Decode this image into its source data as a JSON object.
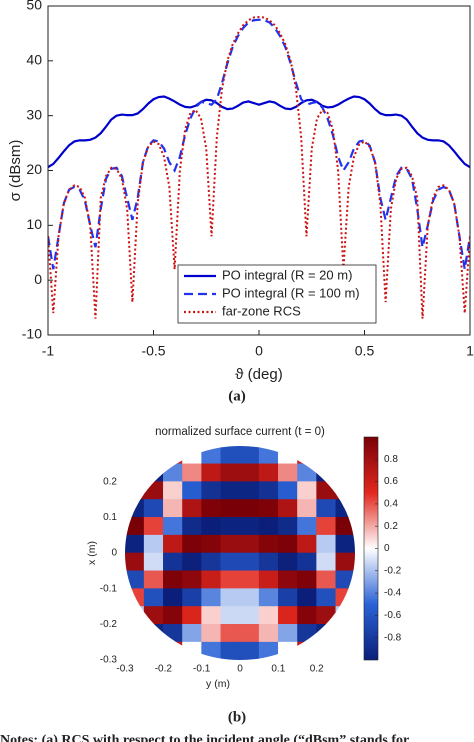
{
  "chart_data": [
    {
      "type": "line",
      "xlabel": "ϑ (deg)",
      "ylabel": "σ (dBsm)",
      "x": [
        -1,
        -0.975,
        -0.95,
        -0.925,
        -0.9,
        -0.875,
        -0.85,
        -0.825,
        -0.8,
        -0.775,
        -0.75,
        -0.725,
        -0.7,
        -0.675,
        -0.65,
        -0.625,
        -0.6,
        -0.575,
        -0.55,
        -0.525,
        -0.5,
        -0.475,
        -0.45,
        -0.425,
        -0.4,
        -0.375,
        -0.35,
        -0.325,
        -0.3,
        -0.275,
        -0.25,
        -0.225,
        -0.2,
        -0.175,
        -0.15,
        -0.125,
        -0.1,
        -0.075,
        -0.05,
        -0.025,
        0,
        0.025,
        0.05,
        0.075,
        0.1,
        0.125,
        0.15,
        0.175,
        0.2,
        0.225,
        0.25,
        0.275,
        0.3,
        0.325,
        0.35,
        0.375,
        0.4,
        0.425,
        0.45,
        0.475,
        0.5,
        0.525,
        0.55,
        0.575,
        0.6,
        0.625,
        0.65,
        0.675,
        0.7,
        0.725,
        0.75,
        0.775,
        0.8,
        0.825,
        0.85,
        0.875,
        0.9,
        0.925,
        0.95,
        0.975,
        1
      ],
      "series": [
        {
          "name": "PO integral (R = 20 m)",
          "color": "#0000cc",
          "style": "solid",
          "values": [
            20.6,
            21.2,
            22.3,
            23.5,
            24.6,
            25.3,
            25.5,
            25.5,
            25.6,
            26,
            26.8,
            28,
            29.3,
            30,
            30.2,
            30.1,
            30.1,
            30.4,
            31.2,
            32.2,
            33,
            33.4,
            33.5,
            33.1,
            32.6,
            32,
            31.6,
            31.5,
            31.8,
            32.5,
            32.9,
            32.8,
            32.3,
            31.6,
            31.2,
            31.3,
            31.8,
            32.4,
            32.6,
            32.3,
            32,
            32.3,
            32.6,
            32.4,
            31.8,
            31.3,
            31.2,
            31.6,
            32.3,
            32.8,
            32.9,
            32.5,
            31.8,
            31.5,
            31.6,
            32,
            32.6,
            33.1,
            33.5,
            33.4,
            33,
            32.2,
            31.2,
            30.4,
            30.1,
            30.1,
            30.2,
            30,
            29.3,
            28,
            26.8,
            26,
            25.6,
            25.5,
            25.5,
            25.3,
            24.6,
            23.5,
            22.3,
            21.2,
            20.6
          ]
        },
        {
          "name": "PO integral (R = 100 m)",
          "color": "#2233ee",
          "style": "dashed",
          "values": [
            8,
            2,
            8,
            14,
            16.5,
            17,
            16.5,
            14.5,
            10,
            6,
            13,
            18.5,
            20.3,
            20.5,
            19,
            15,
            11,
            15,
            21.5,
            24.5,
            25.5,
            25.3,
            24,
            21.5,
            20,
            22.5,
            26.5,
            29.5,
            31.5,
            32.5,
            32.3,
            32,
            33,
            36,
            39.5,
            42.5,
            44.5,
            46,
            47,
            47.4,
            47.5,
            47.4,
            47,
            46,
            44.5,
            42.5,
            39.5,
            36,
            33,
            32,
            32.3,
            32.5,
            31.5,
            29.5,
            26.5,
            22.5,
            20,
            21.5,
            24,
            25.3,
            25.5,
            24.5,
            21.5,
            15,
            11,
            15,
            19,
            20.5,
            20.3,
            18.5,
            13,
            6,
            10,
            14.5,
            16.5,
            17,
            16.5,
            14,
            8,
            2,
            8
          ]
        },
        {
          "name": "far-zone RCS",
          "color": "#cc1111",
          "style": "dotted",
          "values": [
            8,
            -6,
            8,
            14,
            16.5,
            17.3,
            17,
            15,
            10,
            -7,
            15,
            19,
            20.5,
            20.3,
            18.5,
            13,
            -4,
            14,
            21.5,
            24.3,
            25.3,
            24.8,
            22.5,
            17,
            2,
            20,
            27.5,
            30.5,
            31,
            29.5,
            24,
            8,
            26,
            35,
            40,
            43,
            45,
            46.5,
            47.4,
            47.9,
            48,
            47.9,
            47.4,
            46.5,
            45,
            43,
            40,
            35,
            26,
            8,
            24,
            29.5,
            31,
            30.5,
            27.5,
            20,
            2,
            17,
            22.5,
            24.8,
            25.3,
            24.3,
            21.5,
            14,
            -4,
            13,
            18.5,
            20.3,
            20.5,
            19,
            15,
            -7,
            10,
            15,
            17,
            17.3,
            16.5,
            14,
            8,
            -6,
            8
          ]
        }
      ],
      "xlim": [
        -1,
        1
      ],
      "ylim": [
        -10,
        50
      ],
      "xticks": [
        -1,
        -0.5,
        0,
        0.5,
        1
      ],
      "yticks": [
        -10,
        0,
        10,
        20,
        30,
        40,
        50
      ],
      "grid": false,
      "legend": "lower center"
    },
    {
      "type": "heatmap",
      "title": "normalized surface current (t = 0)",
      "xlabel": "y (m)",
      "ylabel": "x (m)",
      "columns": [
        -0.275,
        -0.225,
        -0.175,
        -0.125,
        -0.075,
        -0.025,
        0.025,
        0.075,
        0.125,
        0.175,
        0.225,
        0.275
      ],
      "rows": [
        0.275,
        0.225,
        0.175,
        0.125,
        0.075,
        0.025,
        -0.025,
        -0.075,
        -0.125,
        -0.175,
        -0.225,
        -0.275
      ],
      "values": [
        [
          null,
          null,
          0.63,
          0,
          -0.44,
          -0.64,
          -0.64,
          -0.44,
          0,
          0.63,
          null,
          null
        ],
        [
          null,
          -0.97,
          -0.39,
          0.28,
          0.68,
          0.83,
          0.83,
          0.68,
          0.28,
          -0.39,
          -0.97,
          null
        ],
        [
          0.83,
          0.85,
          0.11,
          -0.54,
          -0.86,
          -0.95,
          -0.95,
          -0.86,
          -0.54,
          0.11,
          0.85,
          0.83
        ],
        [
          -0.95,
          -0.68,
          0.17,
          0.75,
          0.97,
          1,
          1,
          0.97,
          0.75,
          0.17,
          -0.68,
          -0.95
        ],
        [
          1,
          0.44,
          -0.44,
          -0.91,
          -1,
          -0.97,
          -0.97,
          -1,
          -0.91,
          -0.44,
          0.44,
          1
        ],
        [
          -0.97,
          -0.17,
          0.68,
          0.99,
          0.95,
          0.85,
          0.85,
          0.95,
          0.99,
          0.68,
          -0.17,
          -0.97
        ],
        [
          0.85,
          -0.11,
          -0.85,
          -0.99,
          -0.83,
          -0.68,
          -0.68,
          -0.83,
          -0.99,
          -0.85,
          -0.11,
          0.85
        ],
        [
          -0.68,
          0.39,
          0.97,
          0.91,
          0.63,
          0.44,
          0.44,
          0.63,
          0.91,
          0.97,
          0.39,
          -0.68
        ],
        [
          0.44,
          -0.63,
          -1,
          -0.76,
          -0.39,
          -0.17,
          -0.17,
          -0.39,
          -0.76,
          -1,
          -0.63,
          0.44
        ],
        [
          -0.17,
          0.83,
          0.95,
          0.54,
          0.11,
          -0.12,
          -0.12,
          0.11,
          0.54,
          0.95,
          0.83,
          -0.17
        ],
        [
          null,
          -0.95,
          -0.83,
          -0.29,
          0.17,
          0.39,
          0.39,
          0.17,
          -0.29,
          -0.83,
          -0.95,
          null
        ],
        [
          null,
          null,
          0.63,
          0,
          -0.44,
          -0.64,
          -0.64,
          -0.44,
          0,
          0.63,
          null,
          null
        ]
      ],
      "xlim": [
        -0.3,
        0.3
      ],
      "ylim": [
        -0.3,
        0.3
      ],
      "xticks": [
        -0.3,
        -0.2,
        -0.1,
        0,
        0.1,
        0.2
      ],
      "yticks": [
        -0.3,
        -0.2,
        -0.1,
        0,
        0.1,
        0.2
      ],
      "clim": [
        -1,
        1
      ],
      "cticks": [
        -0.8,
        -0.6,
        -0.4,
        -0.2,
        0,
        0.2,
        0.4,
        0.6,
        0.8
      ],
      "colormap": [
        "#0b1f7a",
        "#2a62d6",
        "#ffffff",
        "#e2281f",
        "#7a0008"
      ]
    }
  ],
  "captions": [
    "(a)",
    "(b)"
  ],
  "notes": "Notes: (a) RCS with respect to the incident angle (“dBsm” stands for"
}
